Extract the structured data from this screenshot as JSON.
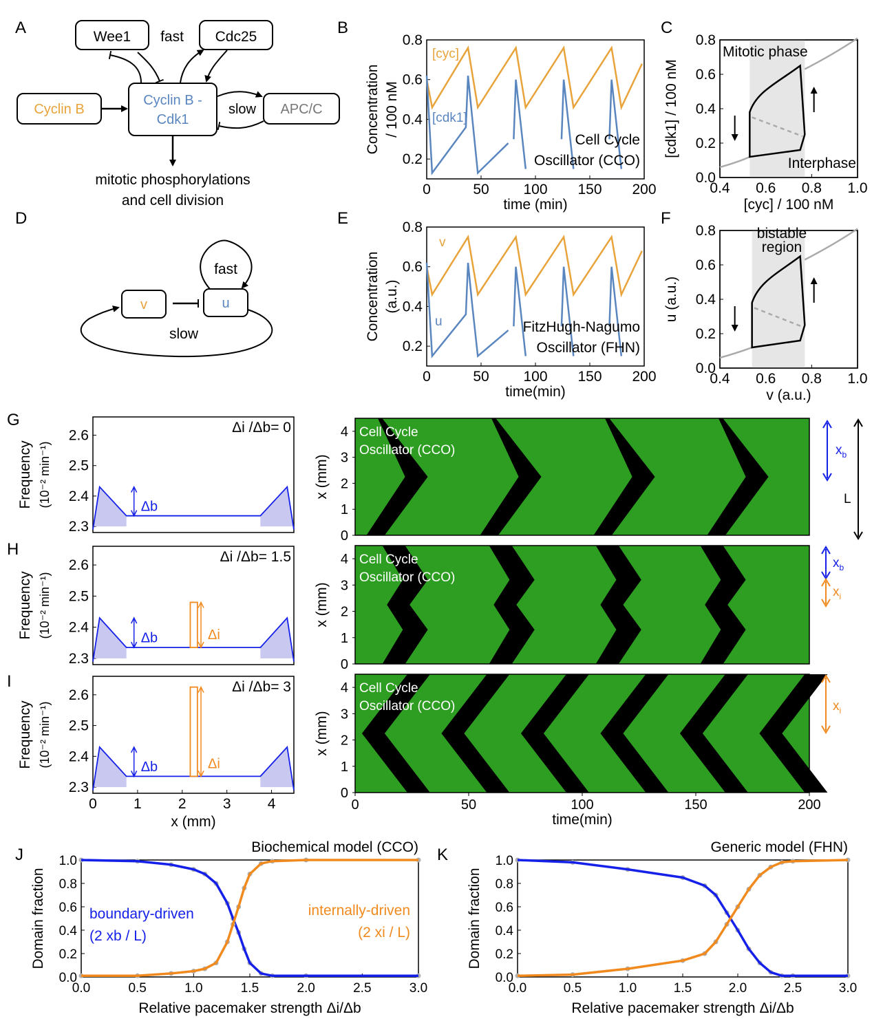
{
  "colors": {
    "orange": "#E8A33A",
    "blue": "#5A86BF",
    "dkblue": "#1520E8",
    "dkorange": "#F08A1E",
    "gray": "#AAAAAA",
    "green": "#2E9E22",
    "black": "#000000"
  },
  "panels": {
    "A": "A",
    "B": "B",
    "C": "C",
    "D": "D",
    "E": "E",
    "F": "F",
    "G": "G",
    "H": "H",
    "I": "I",
    "J": "J",
    "K": "K"
  },
  "A": {
    "wee1": "Wee1",
    "fast": "fast",
    "cdc25": "Cdc25",
    "cyclinB": "Cyclin B",
    "complex1": "Cyclin B -",
    "complex2": "Cdk1",
    "slow": "slow",
    "apcc": "APC/C",
    "out1": "mitotic phosphorylations",
    "out2": "and cell division"
  },
  "D": {
    "fast": "fast",
    "v": "v",
    "u": "u",
    "slow": "slow"
  },
  "chart_data": [
    {
      "panel": "B",
      "type": "line",
      "ylabel1": "Concentration",
      "ylabel2": "/ 100 nM",
      "xlabel": "time (min)",
      "xlim": [
        0,
        200
      ],
      "ylim": [
        0.1,
        0.8
      ],
      "xticks": [
        "0",
        "50",
        "100",
        "150",
        "200"
      ],
      "yticks": [
        "0.2",
        "0.4",
        "0.6",
        "0.8"
      ],
      "xtick_values": [
        0,
        50,
        100,
        150,
        200
      ],
      "ytick_values": [
        0.2,
        0.4,
        0.6,
        0.8
      ],
      "series": [
        {
          "name": "[cyc]"
        },
        {
          "name": "[cdk1]"
        }
      ],
      "annotation1": "Cell Cycle",
      "annotation2": "Oscillator (CCO)"
    },
    {
      "panel": "C",
      "type": "line",
      "ylabel": "[cdk1] / 100 nM",
      "xlabel": "[cyc] / 100 nM",
      "xlim": [
        0.4,
        1.0
      ],
      "ylim": [
        0,
        0.8
      ],
      "xticks": [
        "0.4",
        "0.6",
        "0.8",
        "1.0"
      ],
      "yticks": [
        "0.0",
        "0.2",
        "0.4",
        "0.6",
        "0.8"
      ],
      "xtick_values": [
        0.4,
        0.6,
        0.8,
        1.0
      ],
      "ytick_values": [
        0.0,
        0.2,
        0.4,
        0.6,
        0.8
      ],
      "shaded_region": [
        0.53,
        0.77
      ],
      "top_label": "Mitotic phase",
      "bottom_label": "Interphase"
    },
    {
      "panel": "E",
      "type": "line",
      "ylabel1": "Concentration",
      "ylabel2": "(a.u.)",
      "xlabel": "time(min)",
      "xlim": [
        0,
        200
      ],
      "ylim": [
        0.1,
        0.8
      ],
      "xticks": [
        "0",
        "50",
        "100",
        "150",
        "200"
      ],
      "yticks": [
        "0.2",
        "0.4",
        "0.6",
        "0.8"
      ],
      "xtick_values": [
        0,
        50,
        100,
        150,
        200
      ],
      "ytick_values": [
        0.2,
        0.4,
        0.6,
        0.8
      ],
      "series": [
        {
          "name": "v"
        },
        {
          "name": "u"
        }
      ],
      "annotation1": "FitzHugh-Nagumo",
      "annotation2": "Oscillator (FHN)"
    },
    {
      "panel": "F",
      "type": "line",
      "ylabel": "u (a.u.)",
      "xlabel": "v (a.u.)",
      "xlim": [
        0.4,
        1.0
      ],
      "ylim": [
        0,
        0.8
      ],
      "xticks": [
        "0.4",
        "0.6",
        "0.8",
        "1.0"
      ],
      "yticks": [
        "0.0",
        "0.2",
        "0.4",
        "0.6",
        "0.8"
      ],
      "xtick_values": [
        0.4,
        0.6,
        0.8,
        1.0
      ],
      "ytick_values": [
        0.0,
        0.2,
        0.4,
        0.6,
        0.8
      ],
      "shaded_region": [
        0.54,
        0.77
      ],
      "region_label1": "bistable",
      "region_label2": "region"
    },
    {
      "panel": "G",
      "type": "area",
      "ylabel1": "Frequency",
      "ylabel2": "(10⁻² min⁻¹)",
      "xlim": [
        0,
        4.5
      ],
      "ylim": [
        2.28,
        2.66
      ],
      "yticks": [
        "2.3",
        "2.4",
        "2.5",
        "2.6"
      ],
      "ytick_values": [
        2.3,
        2.4,
        2.5,
        2.6
      ],
      "baseline": 2.335,
      "boundary_peak": 2.43,
      "internal_peak": null,
      "ratio_label": "Δi /Δb= 0",
      "delta_b": "Δb",
      "delta_i": ""
    },
    {
      "panel": "H",
      "type": "area",
      "ylabel1": "Frequency",
      "ylabel2": "(10⁻² min⁻¹)",
      "xlim": [
        0,
        4.5
      ],
      "ylim": [
        2.28,
        2.66
      ],
      "yticks": [
        "2.3",
        "2.4",
        "2.5",
        "2.6"
      ],
      "ytick_values": [
        2.3,
        2.4,
        2.5,
        2.6
      ],
      "baseline": 2.335,
      "boundary_peak": 2.43,
      "internal_peak": 2.48,
      "ratio_label": "Δi /Δb= 1.5",
      "delta_b": "Δb",
      "delta_i": "Δi"
    },
    {
      "panel": "I",
      "type": "area",
      "ylabel1": "Frequency",
      "ylabel2": "(10⁻² min⁻¹)",
      "xlabel": "x (mm)",
      "xlim": [
        0,
        4.5
      ],
      "ylim": [
        2.28,
        2.66
      ],
      "xticks": [
        "0",
        "1",
        "2",
        "3",
        "4"
      ],
      "xtick_values": [
        0,
        1,
        2,
        3,
        4
      ],
      "yticks": [
        "2.3",
        "2.4",
        "2.5",
        "2.6"
      ],
      "ytick_values": [
        2.3,
        2.4,
        2.5,
        2.6
      ],
      "baseline": 2.335,
      "boundary_peak": 2.43,
      "internal_peak": 2.625,
      "ratio_label": "Δi /Δb= 3",
      "delta_b": "Δb",
      "delta_i": "Δi"
    },
    {
      "panel": "G-kymo",
      "type": "heatmap",
      "ylabel": "x (mm)",
      "ylim": [
        0,
        4.5
      ],
      "yticks": [
        "0",
        "1",
        "2",
        "3",
        "4"
      ],
      "ytick_values": [
        0,
        1,
        2,
        3,
        4
      ],
      "xlim": [
        0,
        200
      ],
      "annotation1": "Cell Cycle",
      "annotation2": "Oscillator (CCO)",
      "mode": "boundary",
      "wave_starts": [
        10,
        60,
        110,
        160
      ],
      "period": 50
    },
    {
      "panel": "H-kymo",
      "type": "heatmap",
      "ylabel": "x (mm)",
      "ylim": [
        0,
        4.5
      ],
      "yticks": [
        "0",
        "1",
        "2",
        "3",
        "4"
      ],
      "ytick_values": [
        0,
        1,
        2,
        3,
        4
      ],
      "xlim": [
        0,
        200
      ],
      "annotation1": "Cell Cycle",
      "annotation2": "Oscillator (CCO)",
      "mode": "mixed",
      "wave_starts": [
        12,
        59,
        106,
        152
      ],
      "period": 47
    },
    {
      "panel": "I-kymo",
      "type": "heatmap",
      "ylabel": "x (mm)",
      "xlabel": "time(min)",
      "ylim": [
        0,
        4.5
      ],
      "yticks": [
        "0",
        "1",
        "2",
        "3",
        "4"
      ],
      "ytick_values": [
        0,
        1,
        2,
        3,
        4
      ],
      "xlim": [
        0,
        200
      ],
      "xticks": [
        "0",
        "50",
        "100",
        "150",
        "200"
      ],
      "xtick_values": [
        0,
        50,
        100,
        150,
        200
      ],
      "annotation1": "Cell Cycle",
      "annotation2": "Oscillator (CCO)",
      "mode": "internal",
      "wave_starts": [
        5,
        40,
        75,
        110,
        145,
        180
      ],
      "period": 35
    },
    {
      "panel": "J",
      "type": "line",
      "title": "Biochemical model (CCO)",
      "ylabel": "Domain fraction",
      "xlabel": "Relative pacemaker strength Δi/Δb",
      "xlim": [
        0,
        3
      ],
      "ylim": [
        0,
        1
      ],
      "xticks": [
        "0.0",
        "0.5",
        "1.0",
        "1.5",
        "2.0",
        "2.5",
        "3.0"
      ],
      "xtick_values": [
        0,
        0.5,
        1,
        1.5,
        2,
        2.5,
        3
      ],
      "yticks": [
        "0.0",
        "0.2",
        "0.4",
        "0.6",
        "0.8",
        "1.0"
      ],
      "ytick_values": [
        0,
        0.2,
        0.4,
        0.6,
        0.8,
        1.0
      ],
      "series": [
        {
          "name": "boundary-driven (2 xb / L)",
          "x": [
            0,
            0.5,
            0.8,
            1.0,
            1.1,
            1.2,
            1.3,
            1.35,
            1.4,
            1.45,
            1.5,
            1.6,
            1.7,
            2.0,
            3.0
          ],
          "values": [
            1.0,
            0.99,
            0.96,
            0.92,
            0.88,
            0.8,
            0.63,
            0.5,
            0.38,
            0.24,
            0.12,
            0.03,
            0.01,
            0.01,
            0.01
          ]
        },
        {
          "name": "internally-driven (2 xi / L)",
          "x": [
            0,
            0.5,
            0.8,
            1.0,
            1.1,
            1.2,
            1.3,
            1.35,
            1.4,
            1.45,
            1.5,
            1.6,
            1.7,
            2.0,
            3.0
          ],
          "values": [
            0.01,
            0.01,
            0.03,
            0.05,
            0.07,
            0.12,
            0.3,
            0.45,
            0.6,
            0.76,
            0.88,
            0.97,
            0.99,
            1.0,
            1.0
          ]
        }
      ],
      "label_b1": "boundary-driven",
      "label_b2": "(2 xb / L)",
      "label_i1": "internally-driven",
      "label_i2": "(2 xi / L)"
    },
    {
      "panel": "K",
      "type": "line",
      "title": "Generic model (FHN)",
      "ylabel": "Domain fraction",
      "xlabel": "Relative pacemaker strength Δi/Δb",
      "xlim": [
        0,
        3
      ],
      "ylim": [
        0,
        1
      ],
      "xticks": [
        "0.0",
        "0.5",
        "1.0",
        "1.5",
        "2.0",
        "2.5",
        "3.0"
      ],
      "xtick_values": [
        0,
        0.5,
        1,
        1.5,
        2,
        2.5,
        3
      ],
      "yticks": [
        "0.0",
        "0.2",
        "0.4",
        "0.6",
        "0.8",
        "1.0"
      ],
      "ytick_values": [
        0,
        0.2,
        0.4,
        0.6,
        0.8,
        1.0
      ],
      "series": [
        {
          "name": "boundary-driven",
          "x": [
            0,
            0.5,
            1.0,
            1.5,
            1.7,
            1.8,
            1.9,
            2.0,
            2.1,
            2.2,
            2.3,
            2.4,
            2.5,
            3.0
          ],
          "values": [
            1.0,
            0.98,
            0.92,
            0.85,
            0.78,
            0.7,
            0.55,
            0.4,
            0.24,
            0.12,
            0.04,
            0.01,
            0.01,
            0.01
          ]
        },
        {
          "name": "internally-driven",
          "x": [
            0,
            0.5,
            1.0,
            1.5,
            1.7,
            1.8,
            1.9,
            2.0,
            2.1,
            2.2,
            2.3,
            2.4,
            2.5,
            3.0
          ],
          "values": [
            0.01,
            0.02,
            0.07,
            0.14,
            0.2,
            0.3,
            0.45,
            0.6,
            0.75,
            0.87,
            0.94,
            0.98,
            0.99,
            1.0
          ]
        }
      ]
    }
  ],
  "side": {
    "xb": "x",
    "xb_sub": "b",
    "xi": "x",
    "xi_sub": "i",
    "L": "L"
  }
}
